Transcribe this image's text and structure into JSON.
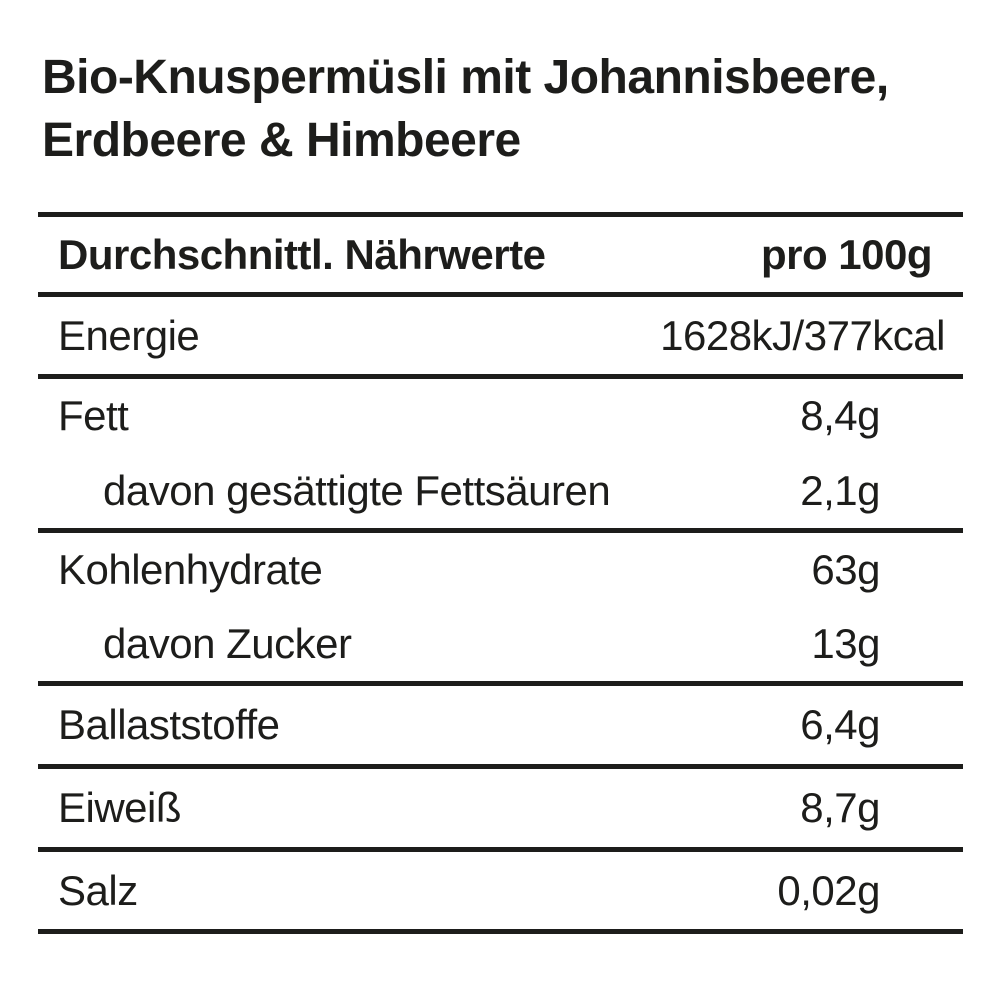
{
  "page": {
    "background_color": "#ffffff",
    "text_color": "#1d1d1b"
  },
  "title": {
    "line1": "Bio-Knuspermüsli mit Johannisbeere,",
    "line2": "Erdbeere & Himbeere"
  },
  "nutrition_table": {
    "header": {
      "label": "Durchschnittl. Nährwerte",
      "column": "pro 100g"
    },
    "rows": [
      {
        "label": "Energie",
        "value": "1628kJ/377kcal",
        "indent": false
      },
      {
        "label": "Fett",
        "value": "8,4g",
        "indent": false
      },
      {
        "label": "davon gesättigte Fettsäuren",
        "value": "2,1g",
        "indent": true
      },
      {
        "label": "Kohlenhydrate",
        "value": "63g",
        "indent": false
      },
      {
        "label": "davon Zucker",
        "value": "13g",
        "indent": true
      },
      {
        "label": "Ballaststoffe",
        "value": "6,4g",
        "indent": false
      },
      {
        "label": "Eiweiß",
        "value": "8,7g",
        "indent": false
      },
      {
        "label": "Salz",
        "value": "0,02g",
        "indent": false
      }
    ]
  }
}
